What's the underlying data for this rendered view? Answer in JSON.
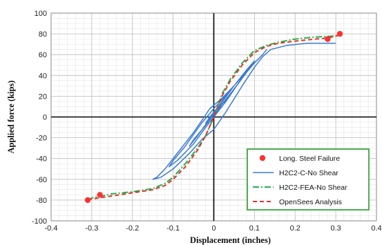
{
  "chart_data": {
    "type": "line",
    "title": "",
    "xlabel": "Displacement (inches)",
    "ylabel": "Applied force (kips)",
    "xlim": [
      -0.4,
      0.4
    ],
    "ylim": [
      -100,
      100
    ],
    "x_ticks": [
      "-0.4",
      "-0.3",
      "-0.2",
      "-0.1",
      "0",
      "0.1",
      "0.2",
      "0.3",
      "0.4"
    ],
    "y_ticks": [
      "-100",
      "-80",
      "-60",
      "-40",
      "-20",
      "0",
      "20",
      "40",
      "60",
      "80",
      "100"
    ],
    "grid": true,
    "legend_position": "bottom-right",
    "colors": {
      "failure": "#ff3030",
      "experiment": "#3a7ad0",
      "fea": "#22b04a",
      "opensees": "#e8302a",
      "legend_border": "#4caf50"
    },
    "series": [
      {
        "name": "Long. Steel Failure",
        "style": "marker",
        "points": [
          [
            0.31,
            80
          ],
          [
            0.28,
            75
          ],
          [
            -0.28,
            -75
          ],
          [
            -0.31,
            -80
          ]
        ]
      },
      {
        "name": "H2C2-C-No Shear",
        "style": "solid",
        "points": [
          [
            0,
            0
          ],
          [
            0.02,
            12
          ],
          [
            0.04,
            22
          ],
          [
            0.03,
            16
          ],
          [
            0.0,
            5
          ],
          [
            -0.02,
            -6
          ],
          [
            -0.01,
            0
          ],
          [
            0.02,
            14
          ],
          [
            0.05,
            30
          ],
          [
            0.07,
            40
          ],
          [
            0.05,
            30
          ],
          [
            0.02,
            15
          ],
          [
            -0.01,
            -2
          ],
          [
            -0.04,
            -18
          ],
          [
            -0.06,
            -28
          ],
          [
            -0.05,
            -22
          ],
          [
            -0.02,
            -8
          ],
          [
            0.02,
            12
          ],
          [
            0.06,
            32
          ],
          [
            0.09,
            48
          ],
          [
            0.1,
            54
          ],
          [
            0.08,
            45
          ],
          [
            0.05,
            30
          ],
          [
            0.0,
            8
          ],
          [
            -0.03,
            -6
          ],
          [
            -0.07,
            -28
          ],
          [
            -0.1,
            -42
          ],
          [
            -0.11,
            -48
          ],
          [
            -0.09,
            -42
          ],
          [
            -0.05,
            -26
          ],
          [
            -0.02,
            -10
          ],
          [
            0.0,
            0
          ],
          [
            0.03,
            15
          ],
          [
            0.07,
            38
          ],
          [
            0.1,
            52
          ],
          [
            0.12,
            60
          ],
          [
            0.13,
            65
          ],
          [
            0.12,
            60
          ],
          [
            0.09,
            48
          ],
          [
            0.05,
            30
          ],
          [
            0.02,
            18
          ],
          [
            -0.01,
            8
          ],
          [
            -0.02,
            2
          ],
          [
            -0.05,
            -15
          ],
          [
            -0.09,
            -35
          ],
          [
            -0.12,
            -50
          ],
          [
            -0.14,
            -58
          ],
          [
            -0.15,
            -60
          ],
          [
            -0.13,
            -58
          ],
          [
            -0.1,
            -50
          ],
          [
            -0.06,
            -35
          ],
          [
            -0.03,
            -22
          ],
          [
            0.0,
            -12
          ],
          [
            0.03,
            5
          ],
          [
            0.07,
            30
          ],
          [
            0.1,
            48
          ],
          [
            0.12,
            58
          ],
          [
            0.14,
            65
          ],
          [
            0.18,
            69
          ],
          [
            0.23,
            71
          ],
          [
            0.28,
            71
          ],
          [
            0.3,
            71
          ]
        ]
      },
      {
        "name": "H2C2-FEA-No Shear",
        "style": "dashdot",
        "points": [
          [
            -0.31,
            -80
          ],
          [
            -0.3,
            -78
          ],
          [
            -0.25,
            -74
          ],
          [
            -0.2,
            -72
          ],
          [
            -0.15,
            -69
          ],
          [
            -0.12,
            -64
          ],
          [
            -0.1,
            -58
          ],
          [
            -0.07,
            -45
          ],
          [
            -0.04,
            -30
          ],
          [
            -0.02,
            -18
          ],
          [
            0.0,
            0
          ],
          [
            0.02,
            22
          ],
          [
            0.04,
            36
          ],
          [
            0.07,
            52
          ],
          [
            0.1,
            64
          ],
          [
            0.13,
            69
          ],
          [
            0.16,
            72
          ],
          [
            0.2,
            75
          ],
          [
            0.25,
            77
          ],
          [
            0.3,
            78
          ],
          [
            0.31,
            79
          ]
        ]
      },
      {
        "name": "OpenSees Analysis",
        "style": "dashed",
        "points": [
          [
            -0.31,
            -80
          ],
          [
            -0.3,
            -79
          ],
          [
            -0.25,
            -76
          ],
          [
            -0.2,
            -73
          ],
          [
            -0.15,
            -70
          ],
          [
            -0.12,
            -66
          ],
          [
            -0.1,
            -60
          ],
          [
            -0.07,
            -48
          ],
          [
            -0.04,
            -32
          ],
          [
            -0.02,
            -18
          ],
          [
            0.0,
            0
          ],
          [
            0.02,
            20
          ],
          [
            0.04,
            34
          ],
          [
            0.07,
            50
          ],
          [
            0.1,
            62
          ],
          [
            0.13,
            68
          ],
          [
            0.16,
            71
          ],
          [
            0.2,
            73
          ],
          [
            0.25,
            75
          ],
          [
            0.28,
            76
          ],
          [
            0.31,
            79
          ]
        ]
      }
    ]
  }
}
